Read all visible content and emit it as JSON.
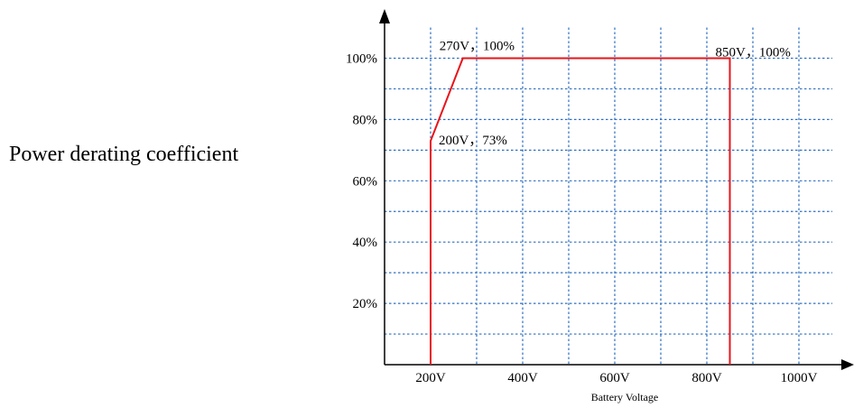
{
  "chart_data": {
    "type": "line",
    "ylabel": "Power derating coefficient",
    "xlabel": "Battery Voltage",
    "xlim": [
      100,
      1100
    ],
    "ylim": [
      0,
      100
    ],
    "x_ticks": [
      {
        "value": 200,
        "label": "200V"
      },
      {
        "value": 400,
        "label": "400V"
      },
      {
        "value": 600,
        "label": "600V"
      },
      {
        "value": 800,
        "label": "800V"
      },
      {
        "value": 1000,
        "label": "1000V"
      }
    ],
    "y_ticks": [
      {
        "value": 20,
        "label": "20%"
      },
      {
        "value": 40,
        "label": "40%"
      },
      {
        "value": 60,
        "label": "60%"
      },
      {
        "value": 80,
        "label": "80%"
      },
      {
        "value": 100,
        "label": "100%"
      }
    ],
    "grid": true,
    "grid_x": [
      200,
      300,
      400,
      500,
      600,
      700,
      800,
      900,
      1000
    ],
    "grid_y": [
      10,
      20,
      30,
      40,
      50,
      60,
      70,
      80,
      90,
      100
    ],
    "series": [
      {
        "color": "#e8141b",
        "points": [
          {
            "x": 200,
            "y": 0
          },
          {
            "x": 200,
            "y": 73
          },
          {
            "x": 270,
            "y": 100
          },
          {
            "x": 850,
            "y": 100
          },
          {
            "x": 850,
            "y": 0
          }
        ]
      }
    ],
    "annotations": [
      {
        "x": 270,
        "y": 100,
        "text": "270V，100%"
      },
      {
        "x": 850,
        "y": 100,
        "text": "850V，100%"
      },
      {
        "x": 200,
        "y": 73,
        "text": "200V，73%"
      }
    ],
    "colors": {
      "line": "#e8141b",
      "grid": "#2e6fc0",
      "axis": "#000000"
    }
  }
}
